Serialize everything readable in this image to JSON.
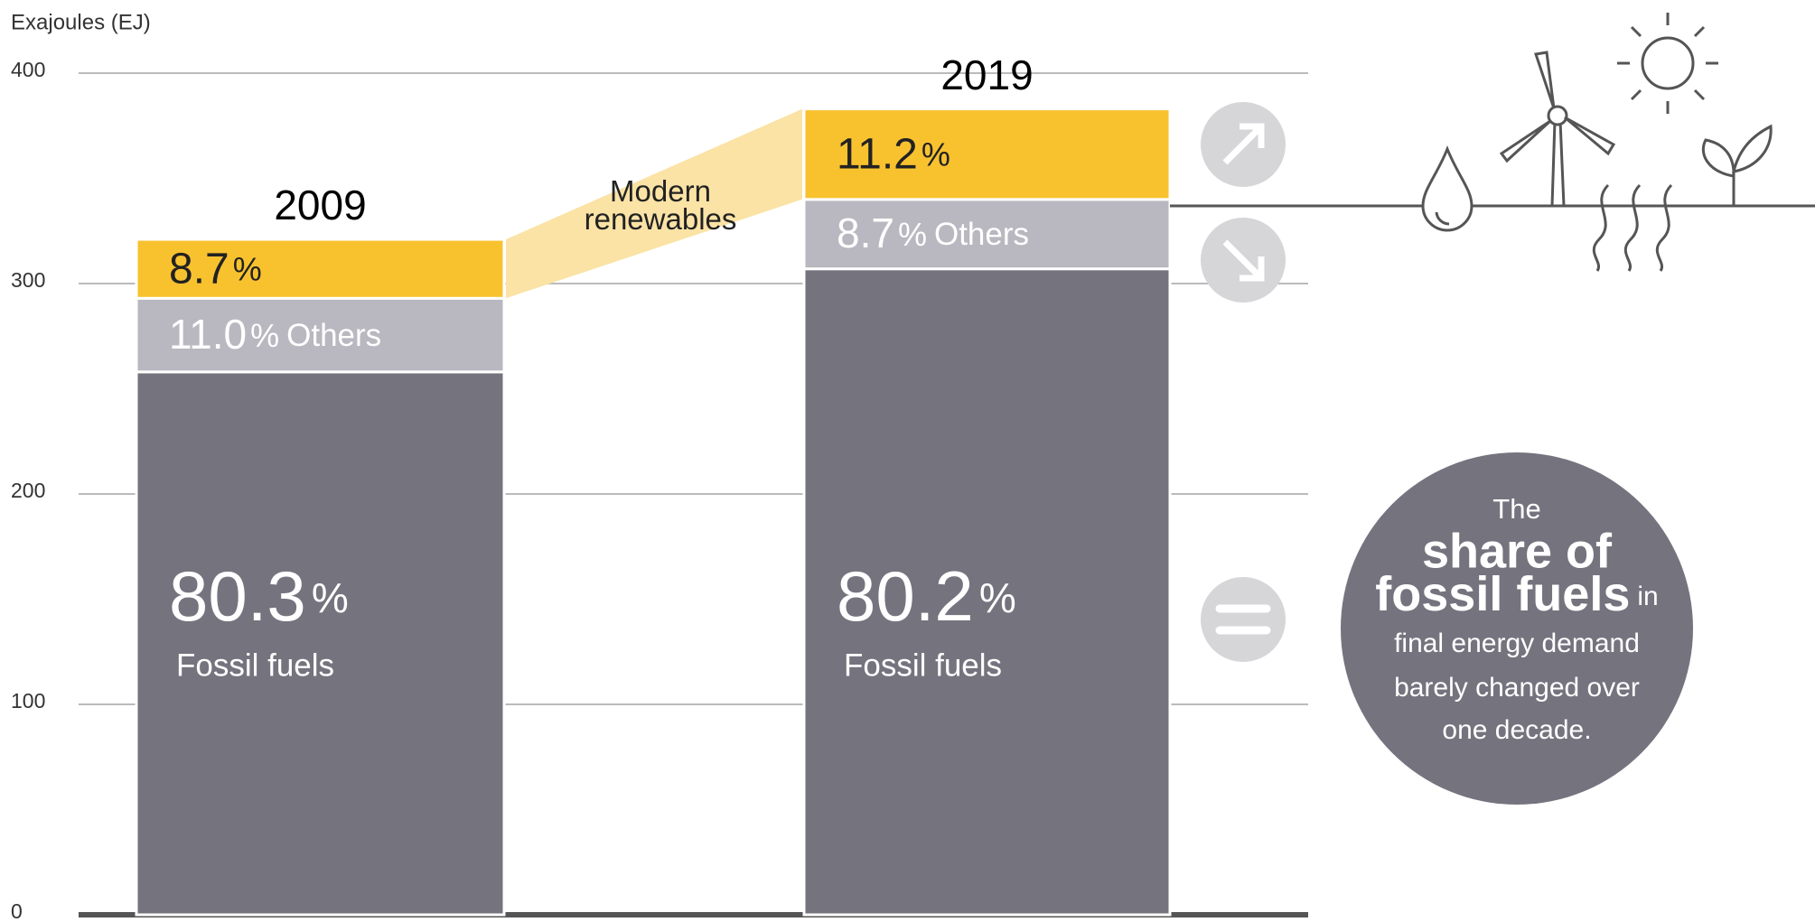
{
  "chart_data": {
    "type": "stacked_bar",
    "y_label": "Exajoules (EJ)",
    "categories": [
      "2009",
      "2019"
    ],
    "ylim": [
      0,
      400
    ],
    "yticks": [
      0,
      100,
      200,
      300,
      400
    ],
    "grid": true,
    "series": [
      {
        "name": "Fossil fuels",
        "color": "#75737e",
        "values": [
          258,
          307
        ],
        "share_labels": [
          "80.3",
          "80.2"
        ]
      },
      {
        "name": "Others",
        "color": "#b9b8c0",
        "values": [
          35,
          33
        ],
        "share_labels": [
          "11.0",
          "8.7"
        ]
      },
      {
        "name": "Modern renewables",
        "color": "#f8c22f",
        "values": [
          28,
          43
        ],
        "share_labels": [
          "8.7",
          "11.2"
        ]
      }
    ],
    "share_unit": "%",
    "annotation": [
      "The",
      "share of",
      "fossil fuels",
      "in",
      "final energy demand",
      "barely changed over",
      "one decade."
    ]
  }
}
